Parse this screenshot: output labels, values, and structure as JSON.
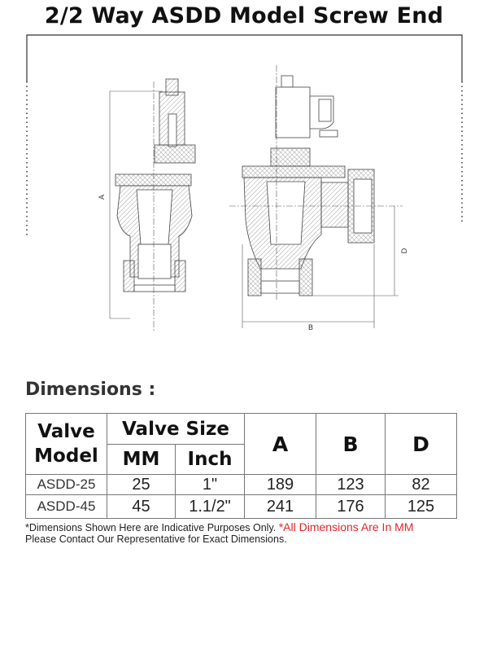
{
  "title": "2/2 Way ASDD Model Screw End",
  "drawing": {
    "dimension_labels": {
      "a": "A",
      "b": "B",
      "d": "D"
    }
  },
  "dimensions_heading": "Dimensions :",
  "table": {
    "headers": {
      "valve_model": "Valve Model",
      "valve_size": "Valve Size",
      "mm": "MM",
      "inch": "Inch",
      "a": "A",
      "b": "B",
      "d": "D"
    },
    "rows": [
      {
        "model": "ASDD-25",
        "mm": "25",
        "inch": "1\"",
        "a": "189",
        "b": "123",
        "d": "82"
      },
      {
        "model": "ASDD-45",
        "mm": "45",
        "inch": "1.1/2\"",
        "a": "241",
        "b": "176",
        "d": "125"
      }
    ]
  },
  "notes": {
    "line1": "*Dimensions Shown Here are Indicative Purposes Only.",
    "mm_note": "*All Dimensions Are In MM",
    "line2": "Please Contact Our Representative for Exact Dimensions."
  },
  "colors": {
    "accent_red": "#e8232a"
  }
}
